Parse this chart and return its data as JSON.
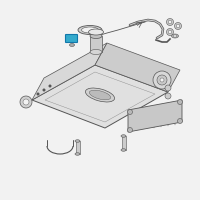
{
  "background_color": "#f2f2f2",
  "line_color": "#555555",
  "highlight_color": "#2299cc",
  "fig_width": 2.0,
  "fig_height": 2.0,
  "dpi": 100
}
